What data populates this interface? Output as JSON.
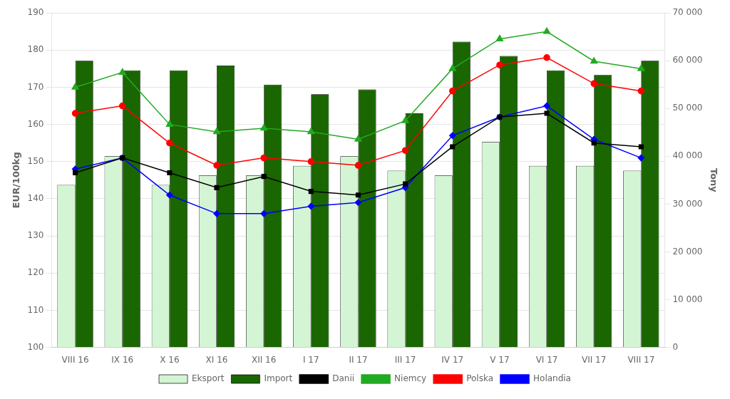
{
  "chart_data": {
    "type": "bar",
    "categories": [
      "VIII 16",
      "IX 16",
      "X 16",
      "XI 16",
      "XII 16",
      "I 17",
      "II 17",
      "III 17",
      "IV 17",
      "V 17",
      "VI 17",
      "VII 17",
      "VIII 17"
    ],
    "series": [
      {
        "name": "Eksport",
        "type": "bar",
        "color": "#d4f5d4",
        "axis": "y2",
        "values": [
          34000,
          40000,
          34000,
          36000,
          36000,
          38000,
          40000,
          37000,
          36000,
          43000,
          38000,
          38000,
          37000
        ]
      },
      {
        "name": "Import",
        "type": "bar",
        "color": "#1a6600",
        "axis": "y2",
        "values": [
          60000,
          58000,
          58000,
          59000,
          55000,
          53000,
          54000,
          49000,
          64000,
          61000,
          58000,
          57000,
          60000
        ]
      },
      {
        "name": "Danii",
        "type": "line",
        "color": "#000000",
        "marker": "square",
        "values": [
          147,
          151,
          147,
          143,
          146,
          142,
          141,
          144,
          154,
          162,
          163,
          155,
          154
        ]
      },
      {
        "name": "Niemcy",
        "type": "line",
        "color": "#22aa22",
        "marker": "triangle",
        "values": [
          170,
          174,
          160,
          158,
          159,
          158,
          156,
          161,
          175,
          183,
          185,
          177,
          175
        ]
      },
      {
        "name": "Polska",
        "type": "line",
        "color": "#ff0000",
        "marker": "circle",
        "values": [
          163,
          165,
          155,
          149,
          151,
          150,
          149,
          153,
          169,
          176,
          178,
          171,
          169
        ]
      },
      {
        "name": "Holandia",
        "type": "line",
        "color": "#0000ff",
        "marker": "diamond",
        "values": [
          148,
          151,
          141,
          136,
          136,
          138,
          139,
          143,
          157,
          162,
          165,
          156,
          151
        ]
      }
    ],
    "ylabel": "EUR/100kg",
    "y2label": "Tony",
    "ylim": [
      100,
      190
    ],
    "yticks": [
      100,
      110,
      120,
      130,
      140,
      150,
      160,
      170,
      180,
      190
    ],
    "y2lim": [
      0,
      70000
    ],
    "y2ticks": [
      0,
      {
        "value": 10000,
        "label": "10 000"
      },
      {
        "value": 20000,
        "label": "20 000"
      },
      {
        "value": 30000,
        "label": "30 000"
      },
      {
        "value": 40000,
        "label": "40 000"
      },
      {
        "value": 50000,
        "label": "50 000"
      },
      {
        "value": 60000,
        "label": "60 000"
      },
      {
        "value": 70000,
        "label": "70 000"
      }
    ],
    "grid": true,
    "legend": "bottom"
  }
}
